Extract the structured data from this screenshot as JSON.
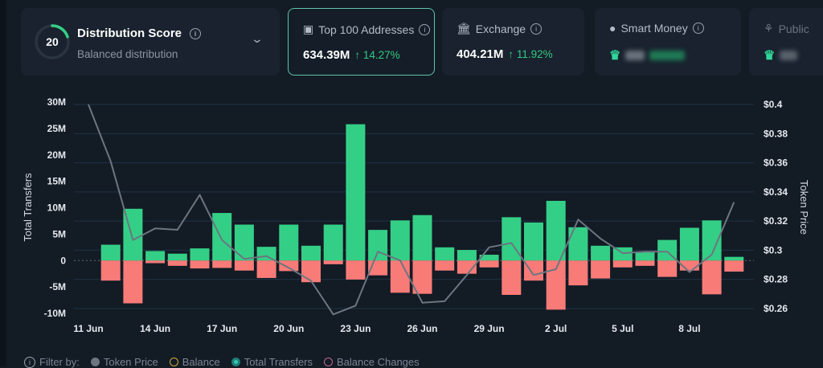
{
  "cards": {
    "score": {
      "value": "20",
      "fraction": 0.2,
      "title": "Distribution Score",
      "subtitle": "Balanced distribution"
    },
    "top100": {
      "title": "Top 100 Addresses",
      "value": "634.39M",
      "change": "↑ 14.27%",
      "icon": "money-icon",
      "selected": true
    },
    "exchange": {
      "title": "Exchange",
      "value": "404.21M",
      "change": "↑ 11.92%",
      "icon": "bank-icon"
    },
    "smart": {
      "title": "Smart Money",
      "icon": "sunglasses-icon",
      "value_blurred": true
    },
    "public": {
      "title": "Public",
      "icon": "public-icon",
      "value_blurred": true
    }
  },
  "colors": {
    "positive": "#34cf86",
    "negative": "#f87b78",
    "price_line": "#6c7580",
    "accent": "#2fd79a"
  },
  "chart_data": {
    "type": "bar",
    "xlabel": "",
    "ylabel": "Total Transfers",
    "y2label": "Token Price",
    "ylim": [
      -10,
      30
    ],
    "y_unit": "M",
    "y_ticks": [
      "30M",
      "25M",
      "20M",
      "15M",
      "10M",
      "5M",
      "0",
      "-5M",
      "-10M"
    ],
    "y2lim": [
      0.26,
      0.4
    ],
    "y2_ticks": [
      "$0.4",
      "$0.38",
      "$0.36",
      "$0.34",
      "$0.32",
      "$0.3",
      "$0.28",
      "$0.26"
    ],
    "x_ticks": [
      "11 Jun",
      "14 Jun",
      "17 Jun",
      "20 Jun",
      "23 Jun",
      "26 Jun",
      "29 Jun",
      "2 Jul",
      "5 Jul",
      "8 Jul"
    ],
    "grid": true,
    "bar_dates": [
      "12 Jun",
      "13 Jun",
      "14 Jun",
      "15 Jun",
      "16 Jun",
      "17 Jun",
      "18 Jun",
      "19 Jun",
      "20 Jun",
      "21 Jun",
      "22 Jun",
      "23 Jun",
      "24 Jun",
      "25 Jun",
      "26 Jun",
      "27 Jun",
      "28 Jun",
      "29 Jun",
      "30 Jun",
      "1 Jul",
      "2 Jul",
      "3 Jul",
      "4 Jul",
      "5 Jul",
      "6 Jul",
      "7 Jul",
      "8 Jul",
      "9 Jul",
      "10 Jul"
    ],
    "series": [
      {
        "values": [
          3.0,
          9.8,
          1.8,
          1.3,
          2.3,
          9.0,
          6.8,
          2.6,
          6.8,
          2.8,
          6.8,
          25.8,
          5.8,
          7.6,
          8.6,
          2.5,
          2.0,
          1.1,
          8.2,
          7.2,
          11.3,
          6.3,
          2.8,
          2.5,
          1.6,
          3.9,
          6.2,
          7.6,
          0.7
        ]
      },
      {
        "values": [
          -3.8,
          -8.1,
          -0.5,
          -1.0,
          -1.5,
          -1.4,
          -1.9,
          -3.3,
          -2.0,
          -4.1,
          -0.7,
          -3.6,
          -2.8,
          -6.1,
          -6.3,
          -1.9,
          -2.5,
          -1.3,
          -6.5,
          -3.8,
          -9.3,
          -4.7,
          -3.4,
          -1.3,
          -1.0,
          -3.1,
          -1.9,
          -6.4,
          -2.1
        ]
      }
    ],
    "price_dates": [
      "11 Jun",
      "12 Jun",
      "13 Jun",
      "14 Jun",
      "15 Jun",
      "16 Jun",
      "17 Jun",
      "18 Jun",
      "19 Jun",
      "20 Jun",
      "21 Jun",
      "22 Jun",
      "23 Jun",
      "24 Jun",
      "25 Jun",
      "26 Jun",
      "27 Jun",
      "28 Jun",
      "29 Jun",
      "30 Jun",
      "1 Jul",
      "2 Jul",
      "3 Jul",
      "4 Jul",
      "5 Jul",
      "6 Jul",
      "7 Jul",
      "8 Jul",
      "9 Jul",
      "10 Jul"
    ],
    "price": [
      0.4,
      0.361,
      0.307,
      0.315,
      0.314,
      0.338,
      0.307,
      0.294,
      0.296,
      0.288,
      0.279,
      0.256,
      0.262,
      0.299,
      0.293,
      0.264,
      0.265,
      0.283,
      0.302,
      0.305,
      0.283,
      0.287,
      0.321,
      0.308,
      0.298,
      0.299,
      0.299,
      0.285,
      0.297,
      0.333
    ]
  },
  "legend": {
    "label": "Filter by:",
    "items": [
      {
        "label": "Token Price",
        "state": "filled"
      },
      {
        "label": "Balance",
        "state": "off"
      },
      {
        "label": "Total Transfers",
        "state": "on"
      },
      {
        "label": "Balance Changes",
        "state": "off"
      }
    ]
  }
}
